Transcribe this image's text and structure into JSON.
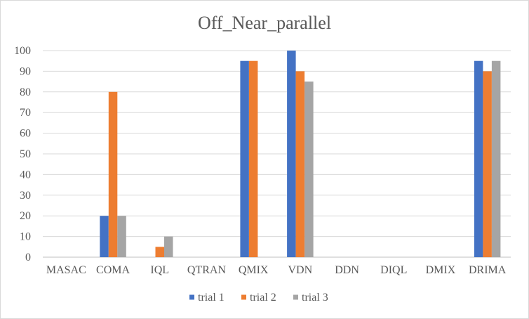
{
  "chart_data": {
    "type": "bar",
    "title": "Off_Near_parallel",
    "xlabel": "",
    "ylabel": "",
    "categories": [
      "MASAC",
      "COMA",
      "IQL",
      "QTRAN",
      "QMIX",
      "VDN",
      "DDN",
      "DIQL",
      "DMIX",
      "DRIMA"
    ],
    "series": [
      {
        "name": "trial 1",
        "color": "#4472C4",
        "values": [
          0,
          20,
          0,
          0,
          95,
          100,
          0,
          0,
          0,
          95
        ]
      },
      {
        "name": "trial 2",
        "color": "#ED7D31",
        "values": [
          0,
          80,
          5,
          0,
          95,
          90,
          0,
          0,
          0,
          90
        ]
      },
      {
        "name": "trial 3",
        "color": "#A5A5A5",
        "values": [
          0,
          20,
          10,
          0,
          0,
          85,
          0,
          0,
          0,
          95
        ]
      }
    ],
    "ylim": [
      0,
      100
    ],
    "yticks": [
      "0",
      "10",
      "20",
      "30",
      "40",
      "50",
      "60",
      "70",
      "80",
      "90",
      "100"
    ],
    "grid": true,
    "legend_position": "bottom"
  }
}
